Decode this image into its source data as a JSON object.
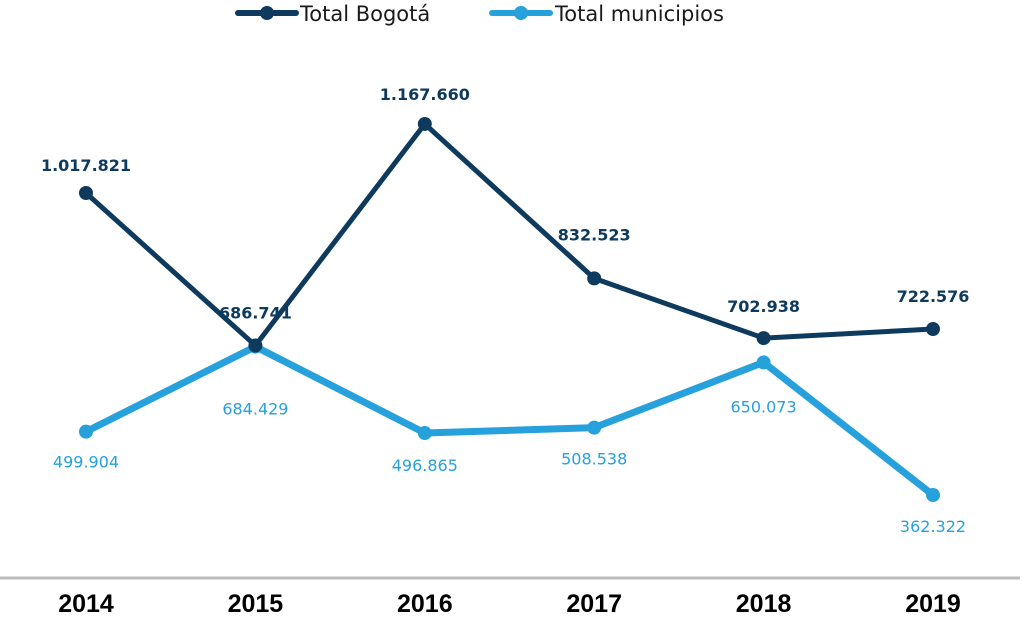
{
  "chart_data": {
    "type": "line",
    "categories": [
      "2014",
      "2015",
      "2016",
      "2017",
      "2018",
      "2019"
    ],
    "ylim": [
      180000,
      1300000
    ],
    "grid": false,
    "legend_position": "top-center",
    "series": [
      {
        "name": "Total Bogotá",
        "color": "#0e3a5e",
        "values": [
          1017821,
          686741,
          1167660,
          832523,
          702938,
          722576
        ],
        "labels": [
          "1.017.821",
          "686.741",
          "1.167.660",
          "832.523",
          "702.938",
          "722.576"
        ]
      },
      {
        "name": "Total municipios",
        "color": "#26a1dc",
        "values": [
          499904,
          684429,
          496865,
          508538,
          650073,
          362322
        ],
        "labels": [
          "499.904",
          "684.429",
          "496.865",
          "508.538",
          "650.073",
          "362.322"
        ]
      }
    ]
  }
}
